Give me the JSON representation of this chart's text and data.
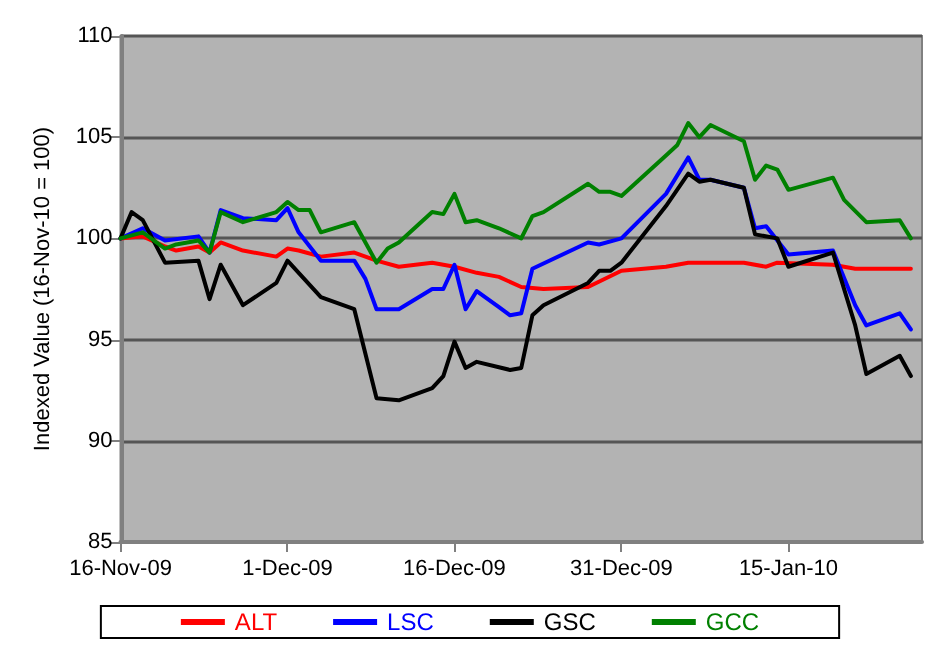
{
  "chart_data": {
    "type": "line",
    "ylabel": "Indexed Value (16-Nov-10 = 100)",
    "xlim": [
      "2009-11-16",
      "2010-01-27"
    ],
    "xticks": [
      {
        "value": "2009-11-16",
        "label": "16-Nov-09"
      },
      {
        "value": "2009-12-01",
        "label": "1-Dec-09"
      },
      {
        "value": "2009-12-16",
        "label": "16-Dec-09"
      },
      {
        "value": "2009-12-31",
        "label": "31-Dec-09"
      },
      {
        "value": "2010-01-15",
        "label": "15-Jan-10"
      }
    ],
    "ylim": [
      85,
      110
    ],
    "yticks": [
      85,
      90,
      95,
      100,
      105,
      110
    ],
    "grid": "y",
    "legend": "bottom",
    "marker": "none",
    "line_style": "solid",
    "series": [
      {
        "name": "ALT",
        "color": "#ff0000",
        "x": [
          "2009-11-16",
          "2009-11-18",
          "2009-11-20",
          "2009-11-21",
          "2009-11-23",
          "2009-11-24",
          "2009-11-25",
          "2009-11-27",
          "2009-11-30",
          "2009-12-01",
          "2009-12-02",
          "2009-12-04",
          "2009-12-07",
          "2009-12-09",
          "2009-12-11",
          "2009-12-14",
          "2009-12-16",
          "2009-12-18",
          "2009-12-20",
          "2009-12-22",
          "2009-12-24",
          "2009-12-28",
          "2009-12-31",
          "2010-01-04",
          "2010-01-06",
          "2010-01-11",
          "2010-01-13",
          "2010-01-14",
          "2010-01-19",
          "2010-01-21",
          "2010-01-26"
        ],
        "values": [
          100,
          100.1,
          99.6,
          99.4,
          99.6,
          99.3,
          99.8,
          99.4,
          99.1,
          99.5,
          99.4,
          99.1,
          99.3,
          98.9,
          98.6,
          98.8,
          98.6,
          98.3,
          98.1,
          97.6,
          97.5,
          97.6,
          98.4,
          98.6,
          98.8,
          98.8,
          98.6,
          98.8,
          98.7,
          98.5,
          98.5
        ]
      },
      {
        "name": "LSC",
        "color": "#0000ff",
        "x": [
          "2009-11-16",
          "2009-11-18",
          "2009-11-20",
          "2009-11-23",
          "2009-11-24",
          "2009-11-25",
          "2009-11-27",
          "2009-11-30",
          "2009-12-01",
          "2009-12-02",
          "2009-12-04",
          "2009-12-07",
          "2009-12-08",
          "2009-12-09",
          "2009-12-11",
          "2009-12-14",
          "2009-12-15",
          "2009-12-16",
          "2009-12-17",
          "2009-12-18",
          "2009-12-20",
          "2009-12-21",
          "2009-12-22",
          "2009-12-23",
          "2009-12-28",
          "2009-12-29",
          "2009-12-31",
          "2010-01-04",
          "2010-01-06",
          "2010-01-07",
          "2010-01-08",
          "2010-01-11",
          "2010-01-12",
          "2010-01-13",
          "2010-01-15",
          "2010-01-19",
          "2010-01-21",
          "2010-01-22",
          "2010-01-25",
          "2010-01-26"
        ],
        "values": [
          100,
          100.5,
          99.9,
          100.1,
          99.3,
          101.4,
          101.0,
          100.9,
          101.5,
          100.3,
          98.9,
          98.9,
          98.0,
          96.5,
          96.5,
          97.5,
          97.5,
          98.7,
          96.5,
          97.4,
          96.6,
          96.2,
          96.3,
          98.5,
          99.8,
          99.7,
          100.0,
          102.2,
          104.0,
          102.9,
          102.9,
          102.5,
          100.5,
          100.6,
          99.2,
          99.4,
          96.7,
          95.7,
          96.3,
          95.5
        ]
      },
      {
        "name": "GSC",
        "color": "#000000",
        "x": [
          "2009-11-16",
          "2009-11-17",
          "2009-11-18",
          "2009-11-20",
          "2009-11-23",
          "2009-11-24",
          "2009-11-25",
          "2009-11-27",
          "2009-11-30",
          "2009-12-01",
          "2009-12-04",
          "2009-12-07",
          "2009-12-09",
          "2009-12-11",
          "2009-12-14",
          "2009-12-15",
          "2009-12-16",
          "2009-12-17",
          "2009-12-18",
          "2009-12-21",
          "2009-12-22",
          "2009-12-23",
          "2009-12-24",
          "2009-12-28",
          "2009-12-29",
          "2009-12-30",
          "2009-12-31",
          "2010-01-04",
          "2010-01-06",
          "2010-01-07",
          "2010-01-08",
          "2010-01-11",
          "2010-01-12",
          "2010-01-14",
          "2010-01-15",
          "2010-01-19",
          "2010-01-21",
          "2010-01-22",
          "2010-01-25",
          "2010-01-26"
        ],
        "values": [
          100,
          101.3,
          100.9,
          98.8,
          98.9,
          97.0,
          98.7,
          96.7,
          97.8,
          98.9,
          97.1,
          96.5,
          92.1,
          92.0,
          92.6,
          93.2,
          94.9,
          93.6,
          93.9,
          93.5,
          93.6,
          96.2,
          96.7,
          97.8,
          98.4,
          98.4,
          98.8,
          101.6,
          103.2,
          102.8,
          102.9,
          102.5,
          100.2,
          100.0,
          98.6,
          99.3,
          95.7,
          93.3,
          94.2,
          93.2
        ]
      },
      {
        "name": "GCC",
        "color": "#008000",
        "x": [
          "2009-11-16",
          "2009-11-18",
          "2009-11-20",
          "2009-11-21",
          "2009-11-23",
          "2009-11-24",
          "2009-11-25",
          "2009-11-27",
          "2009-11-30",
          "2009-12-01",
          "2009-12-02",
          "2009-12-03",
          "2009-12-04",
          "2009-12-07",
          "2009-12-09",
          "2009-12-10",
          "2009-12-11",
          "2009-12-14",
          "2009-12-15",
          "2009-12-16",
          "2009-12-17",
          "2009-12-18",
          "2009-12-20",
          "2009-12-22",
          "2009-12-23",
          "2009-12-24",
          "2009-12-28",
          "2009-12-29",
          "2009-12-30",
          "2009-12-31",
          "2010-01-04",
          "2010-01-05",
          "2010-01-06",
          "2010-01-07",
          "2010-01-08",
          "2010-01-11",
          "2010-01-12",
          "2010-01-13",
          "2010-01-14",
          "2010-01-15",
          "2010-01-19",
          "2010-01-20",
          "2010-01-22",
          "2010-01-25",
          "2010-01-26"
        ],
        "values": [
          100,
          100.3,
          99.5,
          99.7,
          99.9,
          99.3,
          101.3,
          100.8,
          101.3,
          101.8,
          101.4,
          101.4,
          100.3,
          100.8,
          98.8,
          99.5,
          99.8,
          101.3,
          101.2,
          102.2,
          100.8,
          100.9,
          100.5,
          100.0,
          101.1,
          101.3,
          102.7,
          102.3,
          102.3,
          102.1,
          104.1,
          104.6,
          105.7,
          105.0,
          105.6,
          104.8,
          102.9,
          103.6,
          103.4,
          102.4,
          103.0,
          101.9,
          100.8,
          100.9,
          100.0
        ]
      }
    ]
  }
}
